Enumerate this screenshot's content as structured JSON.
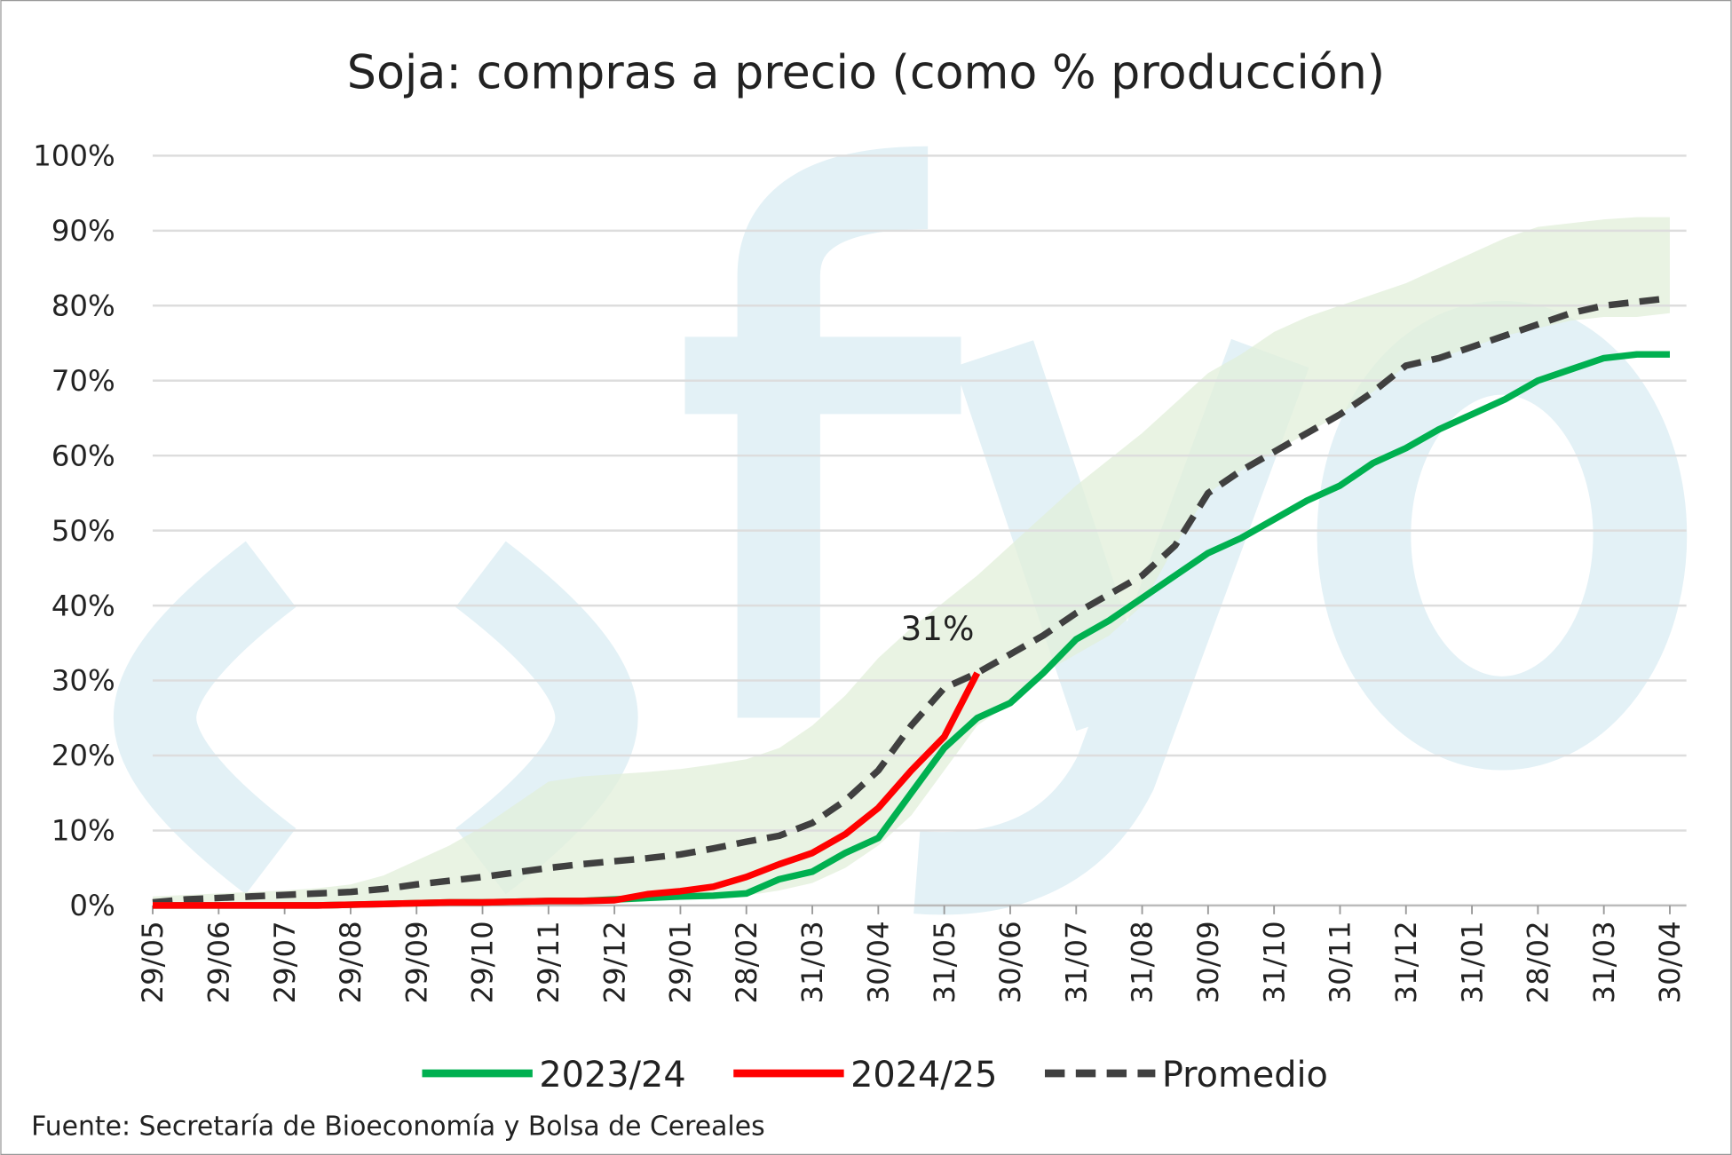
{
  "chart_data": {
    "type": "line",
    "title": "Soja: compras a precio (como % producción)",
    "source": "Fuente: Secretaría de Bioeconomía y Bolsa de Cereales",
    "categories": [
      "29/05",
      null,
      "29/06",
      null,
      "29/07",
      null,
      "29/08",
      null,
      "29/09",
      null,
      "29/10",
      null,
      "29/11",
      null,
      "29/12",
      null,
      "29/01",
      null,
      "28/02",
      null,
      "31/03",
      null,
      "30/04",
      null,
      "31/05",
      null,
      "30/06",
      null,
      "31/07",
      null,
      "31/08",
      null,
      "30/09",
      null,
      "31/10",
      null,
      "30/11",
      null,
      "31/12",
      null,
      "31/01",
      null,
      "28/02",
      null,
      "31/03",
      null,
      "30/04"
    ],
    "series": [
      {
        "name": "2023/24",
        "color": "#00b050",
        "dash": false,
        "values": [
          0,
          0,
          0,
          0,
          0,
          0,
          0.1,
          0.2,
          0.3,
          0.4,
          0.4,
          0.5,
          0.6,
          0.6,
          0.8,
          1.0,
          1.2,
          1.3,
          1.6,
          3.5,
          4.5,
          7,
          9,
          15,
          21,
          25,
          27,
          31,
          35.5,
          38,
          41,
          44,
          47,
          49,
          51.5,
          54,
          56,
          59,
          61,
          63.5,
          65.5,
          67.5,
          70,
          71.5,
          73,
          73.5,
          73.5
        ]
      },
      {
        "name": "2024/25",
        "color": "#ff0000",
        "dash": false,
        "values": [
          0,
          0,
          0,
          0,
          0,
          0,
          0.1,
          0.2,
          0.3,
          0.4,
          0.4,
          0.5,
          0.6,
          0.6,
          0.7,
          1.5,
          1.9,
          2.5,
          3.8,
          5.5,
          7,
          9.5,
          13,
          18,
          22.5,
          31,
          null,
          null,
          null,
          null,
          null,
          null,
          null,
          null,
          null,
          null,
          null,
          null,
          null,
          null,
          null,
          null,
          null,
          null,
          null,
          null,
          null
        ],
        "value_labels": [
          null,
          null,
          null,
          null,
          null,
          null,
          null,
          null,
          null,
          null,
          null,
          null,
          null,
          null,
          null,
          null,
          null,
          null,
          null,
          null,
          null,
          null,
          null,
          null,
          null,
          "31%",
          null,
          null,
          null,
          null,
          null,
          null,
          null,
          null,
          null,
          null,
          null,
          null,
          null,
          null,
          null,
          null,
          null,
          null,
          null,
          null,
          null
        ]
      },
      {
        "name": "Promedio",
        "color": "#404040",
        "dash": true,
        "values": [
          0.4,
          0.8,
          1.0,
          1.2,
          1.4,
          1.6,
          1.8,
          2.2,
          2.8,
          3.3,
          3.8,
          4.4,
          5,
          5.5,
          5.9,
          6.3,
          6.8,
          7.6,
          8.5,
          9.3,
          11,
          14,
          18,
          24,
          29,
          31,
          33.5,
          36,
          39,
          41.5,
          44,
          48,
          55,
          58,
          60.5,
          63,
          65.5,
          68.5,
          72,
          73,
          74.5,
          76,
          77.5,
          79,
          80,
          80.5,
          81
        ]
      }
    ],
    "band": {
      "color": "#e2efd9",
      "upper": [
        1.2,
        1.4,
        1.6,
        1.8,
        2.0,
        2.3,
        2.8,
        4,
        6,
        8,
        10.5,
        13.5,
        16.5,
        17.2,
        17.5,
        17.8,
        18.2,
        18.8,
        19.5,
        21,
        24,
        28,
        33,
        37,
        40.5,
        44,
        48,
        52,
        56,
        59.5,
        63,
        67,
        71,
        73.5,
        76.5,
        78.5,
        80,
        81.5,
        83,
        85,
        87,
        89,
        90.5,
        91,
        91.5,
        91.8,
        91.8
      ],
      "lower": [
        0,
        0,
        0,
        0,
        0,
        0,
        0,
        0,
        0,
        0,
        0,
        0,
        0,
        0,
        0.3,
        0.5,
        0.8,
        1,
        1.3,
        2,
        3,
        5,
        8,
        12,
        18,
        24,
        27,
        31,
        33.5,
        36,
        40,
        48,
        55,
        58,
        60.5,
        63,
        65.5,
        68.5,
        72,
        73,
        74.5,
        76,
        77,
        78,
        78.5,
        78.5,
        79
      ]
    },
    "ylim": [
      0,
      100
    ],
    "yticks": [
      {
        "value": 0,
        "label": "0%"
      },
      {
        "value": 10,
        "label": "10%"
      },
      {
        "value": 20,
        "label": "20%"
      },
      {
        "value": 30,
        "label": "30%"
      },
      {
        "value": 40,
        "label": "40%"
      },
      {
        "value": 50,
        "label": "50%"
      },
      {
        "value": 60,
        "label": "60%"
      },
      {
        "value": 70,
        "label": "70%"
      },
      {
        "value": 80,
        "label": "80%"
      },
      {
        "value": 90,
        "label": "90%"
      },
      {
        "value": 100,
        "label": "100%"
      }
    ],
    "grid": true,
    "legend": "bottom"
  }
}
